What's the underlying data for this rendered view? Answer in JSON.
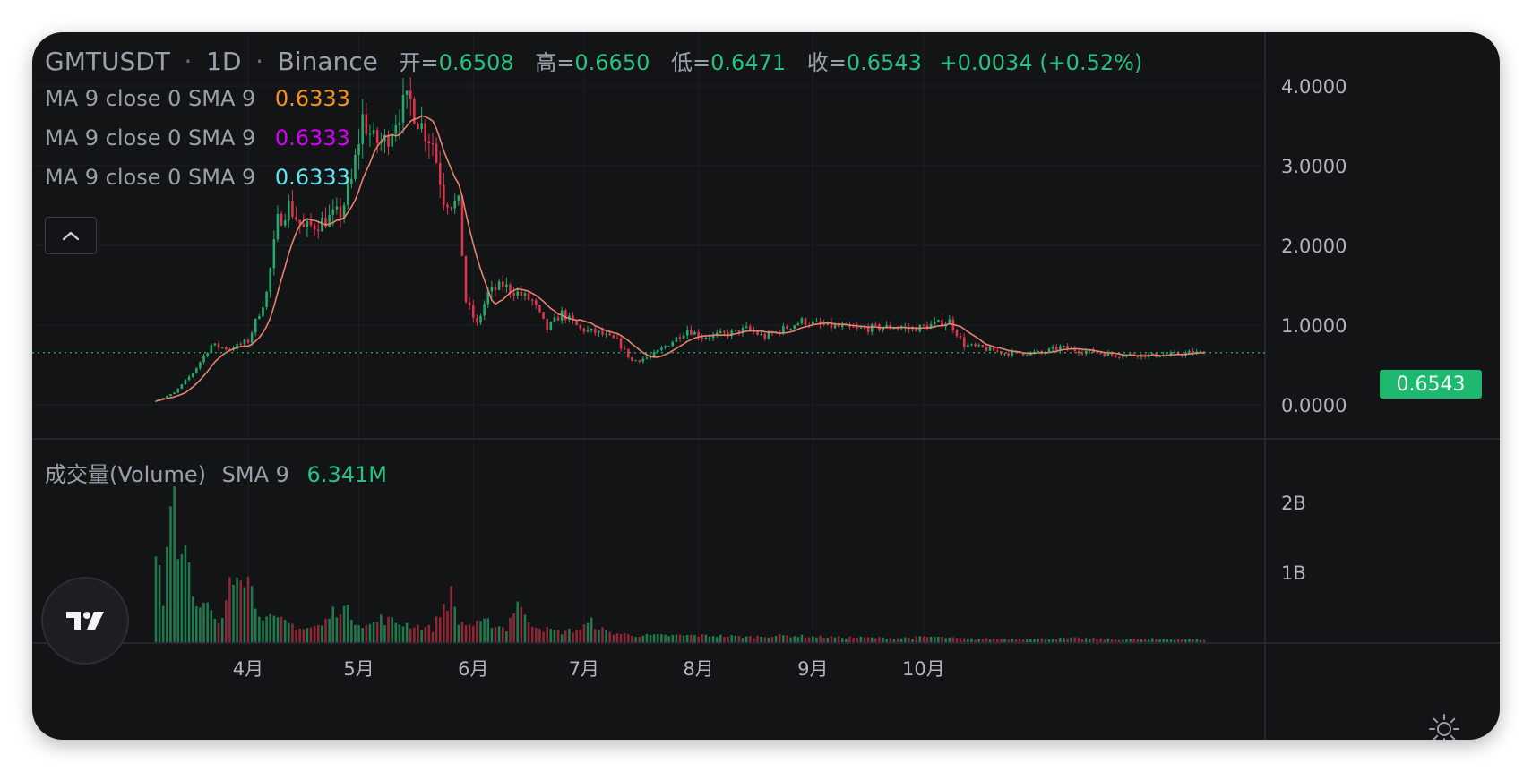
{
  "header": {
    "symbol": "GMTUSDT",
    "interval": "1D",
    "exchange": "Binance",
    "open_label": "开=",
    "open_value": "0.6508",
    "high_label": "高=",
    "high_value": "0.6650",
    "low_label": "低=",
    "low_value": "0.6471",
    "close_label": "收=",
    "close_value": "0.6543",
    "change": "+0.0034 (+0.52%)"
  },
  "indicators": [
    {
      "label": "MA 9 close 0 SMA 9",
      "value": "0.6333",
      "color": "#f7931a"
    },
    {
      "label": "MA 9 close 0 SMA 9",
      "value": "0.6333",
      "color": "#d500f9"
    },
    {
      "label": "MA 9 close 0 SMA 9",
      "value": "0.6333",
      "color": "#5ee6f2"
    }
  ],
  "volume_legend": {
    "label": "成交量(Volume)",
    "sma_label": "SMA 9",
    "value": "6.341M"
  },
  "price_tag": "0.6543",
  "colors": {
    "up": "#22ab6c",
    "down": "#e0334d",
    "ma_line": "#e8826f",
    "background": "#131416",
    "grid": "#1c1e22"
  },
  "icons": {
    "collapse": "chevron-up-icon",
    "logo": "tradingview-logo-icon",
    "settings": "sun-settings-icon"
  },
  "chart_data": {
    "type": "candlestick",
    "interval": "1D",
    "price_axis": {
      "ticks": [
        "4.0000",
        "3.0000",
        "2.0000",
        "1.0000",
        "0.0000"
      ],
      "range": [
        -0.3,
        4.5
      ]
    },
    "volume_axis": {
      "ticks": [
        "2B",
        "1B"
      ],
      "unit": "B",
      "range": [
        0,
        2.8
      ]
    },
    "x_axis": {
      "months": [
        "4月",
        "5月",
        "6月",
        "7月",
        "8月",
        "9月",
        "10月"
      ]
    },
    "last_price": 0.6543,
    "series": [
      {
        "name": "GMTUSDT",
        "kind": "ohlc",
        "anchors": [
          [
            0,
            0.05
          ],
          [
            5,
            0.15
          ],
          [
            10,
            0.4
          ],
          [
            15,
            0.75
          ],
          [
            20,
            0.7
          ],
          [
            25,
            0.8
          ],
          [
            30,
            1.4
          ],
          [
            33,
            2.3
          ],
          [
            36,
            2.5
          ],
          [
            40,
            2.2
          ],
          [
            45,
            2.3
          ],
          [
            50,
            2.4
          ],
          [
            53,
            2.8
          ],
          [
            56,
            3.6
          ],
          [
            59,
            3.3
          ],
          [
            62,
            3.3
          ],
          [
            66,
            3.7
          ],
          [
            69,
            3.8
          ],
          [
            72,
            3.5
          ],
          [
            75,
            3.3
          ],
          [
            78,
            2.6
          ],
          [
            82,
            2.5
          ],
          [
            84,
            1.3
          ],
          [
            87,
            1.0
          ],
          [
            90,
            1.4
          ],
          [
            94,
            1.5
          ],
          [
            98,
            1.4
          ],
          [
            102,
            1.3
          ],
          [
            106,
            0.95
          ],
          [
            110,
            1.15
          ],
          [
            115,
            0.95
          ],
          [
            120,
            0.9
          ],
          [
            125,
            0.8
          ],
          [
            129,
            0.55
          ],
          [
            134,
            0.6
          ],
          [
            140,
            0.8
          ],
          [
            144,
            0.95
          ],
          [
            148,
            0.85
          ],
          [
            156,
            0.9
          ],
          [
            160,
            0.95
          ],
          [
            165,
            0.85
          ],
          [
            170,
            0.95
          ],
          [
            175,
            1.05
          ],
          [
            180,
            1.0
          ],
          [
            190,
            0.95
          ],
          [
            200,
            0.98
          ],
          [
            205,
            0.95
          ],
          [
            210,
            1.0
          ],
          [
            215,
            1.05
          ],
          [
            219,
            0.75
          ],
          [
            225,
            0.7
          ],
          [
            230,
            0.65
          ],
          [
            235,
            0.65
          ],
          [
            240,
            0.65
          ],
          [
            245,
            0.72
          ],
          [
            250,
            0.68
          ],
          [
            255,
            0.66
          ],
          [
            260,
            0.62
          ],
          [
            265,
            0.63
          ],
          [
            270,
            0.62
          ],
          [
            275,
            0.63
          ],
          [
            280,
            0.65
          ],
          [
            284,
            0.6543
          ]
        ]
      },
      {
        "name": "Volume",
        "kind": "volume",
        "unit": "B",
        "anchors": [
          [
            0,
            1.75
          ],
          [
            2,
            0.55
          ],
          [
            4,
            2.5
          ],
          [
            5,
            2.35
          ],
          [
            6,
            1.5
          ],
          [
            7,
            1.3
          ],
          [
            8,
            1.85
          ],
          [
            9,
            1.6
          ],
          [
            10,
            0.6
          ],
          [
            12,
            0.45
          ],
          [
            14,
            0.55
          ],
          [
            16,
            0.3
          ],
          [
            18,
            0.3
          ],
          [
            20,
            1.05
          ],
          [
            22,
            1.25
          ],
          [
            24,
            1.1
          ],
          [
            25,
            0.95
          ],
          [
            27,
            0.6
          ],
          [
            30,
            0.35
          ],
          [
            35,
            0.3
          ],
          [
            40,
            0.2
          ],
          [
            45,
            0.25
          ],
          [
            48,
            0.45
          ],
          [
            50,
            0.55
          ],
          [
            52,
            0.45
          ],
          [
            55,
            0.3
          ],
          [
            58,
            0.25
          ],
          [
            61,
            0.35
          ],
          [
            65,
            0.3
          ],
          [
            70,
            0.25
          ],
          [
            75,
            0.2
          ],
          [
            78,
            0.55
          ],
          [
            80,
            0.7
          ],
          [
            82,
            0.3
          ],
          [
            86,
            0.25
          ],
          [
            90,
            0.3
          ],
          [
            95,
            0.2
          ],
          [
            98,
            0.65
          ],
          [
            100,
            0.35
          ],
          [
            105,
            0.2
          ],
          [
            110,
            0.15
          ],
          [
            115,
            0.2
          ],
          [
            118,
            0.3
          ],
          [
            122,
            0.15
          ],
          [
            130,
            0.1
          ],
          [
            140,
            0.1
          ],
          [
            150,
            0.1
          ],
          [
            160,
            0.08
          ],
          [
            170,
            0.1
          ],
          [
            180,
            0.08
          ],
          [
            190,
            0.07
          ],
          [
            200,
            0.06
          ],
          [
            210,
            0.08
          ],
          [
            220,
            0.05
          ],
          [
            230,
            0.05
          ],
          [
            240,
            0.05
          ],
          [
            250,
            0.06
          ],
          [
            260,
            0.04
          ],
          [
            270,
            0.05
          ],
          [
            284,
            0.04
          ]
        ]
      }
    ]
  }
}
